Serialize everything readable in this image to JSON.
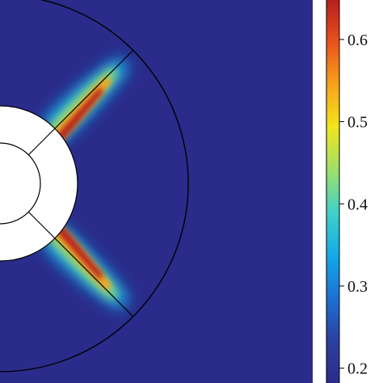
{
  "chart_data": {
    "type": "heatmap",
    "description_visible": "",
    "colormap": [
      "#2a2b8a",
      "#2c3f9e",
      "#1e6fd0",
      "#14a9e8",
      "#3fd0c8",
      "#9de06a",
      "#f2e51c",
      "#f7a21b",
      "#e8501c",
      "#b31d1f"
    ],
    "plot_background": "#2a2b8a",
    "colorbar": {
      "ticks": [
        {
          "value": 0.2,
          "label": "0.2"
        },
        {
          "value": 0.3,
          "label": "0.3"
        },
        {
          "value": 0.4,
          "label": "0.4"
        },
        {
          "value": 0.5,
          "label": "0.5"
        },
        {
          "value": 0.6,
          "label": "0.6"
        }
      ],
      "range": [
        0.18,
        0.65
      ]
    },
    "hot_zones": [
      {
        "name": "upper-arm",
        "peak_value": 0.64
      },
      {
        "name": "lower-arm",
        "peak_value": 0.64
      }
    ]
  }
}
